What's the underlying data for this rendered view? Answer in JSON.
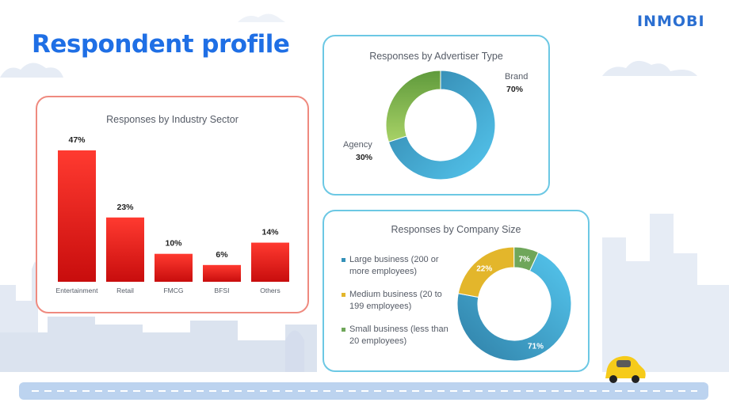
{
  "brand": {
    "logo_text": "INMOBI",
    "color": "#2b6fd1"
  },
  "page": {
    "title": "Respondent profile"
  },
  "colors": {
    "red": "#e41e1e",
    "teal": "#3491b8",
    "green": "#7fb34c",
    "yellow": "#e3b62b",
    "olive": "#6fa65a"
  },
  "chart_data": [
    {
      "type": "bar",
      "title": "Responses by Industry Sector",
      "categories": [
        "Entertainment",
        "Retail",
        "FMCG",
        "BFSI",
        "Others"
      ],
      "values": [
        47,
        23,
        10,
        6,
        14
      ],
      "value_labels": [
        "47%",
        "23%",
        "10%",
        "6%",
        "14%"
      ],
      "ylim": [
        0,
        47
      ],
      "grid": false
    },
    {
      "type": "pie",
      "title": "Responses by Advertiser Type",
      "labels": [
        "Brand",
        "Agency"
      ],
      "values": [
        70,
        30
      ],
      "value_labels": [
        "70%",
        "30%"
      ],
      "colors": [
        "#3491b8",
        "#7fb34c"
      ]
    },
    {
      "type": "pie",
      "title": "Responses by Company Size",
      "labels": [
        "Large business (200 or more employees)",
        "Medium business (20 to 199 employees)",
        "Small business (less than 20 employees)"
      ],
      "values": [
        71,
        22,
        7
      ],
      "value_labels": [
        "71%",
        "22%",
        "7%"
      ],
      "colors": [
        "#3491b8",
        "#e3b62b",
        "#6fa65a"
      ],
      "legend_position": "left"
    }
  ]
}
